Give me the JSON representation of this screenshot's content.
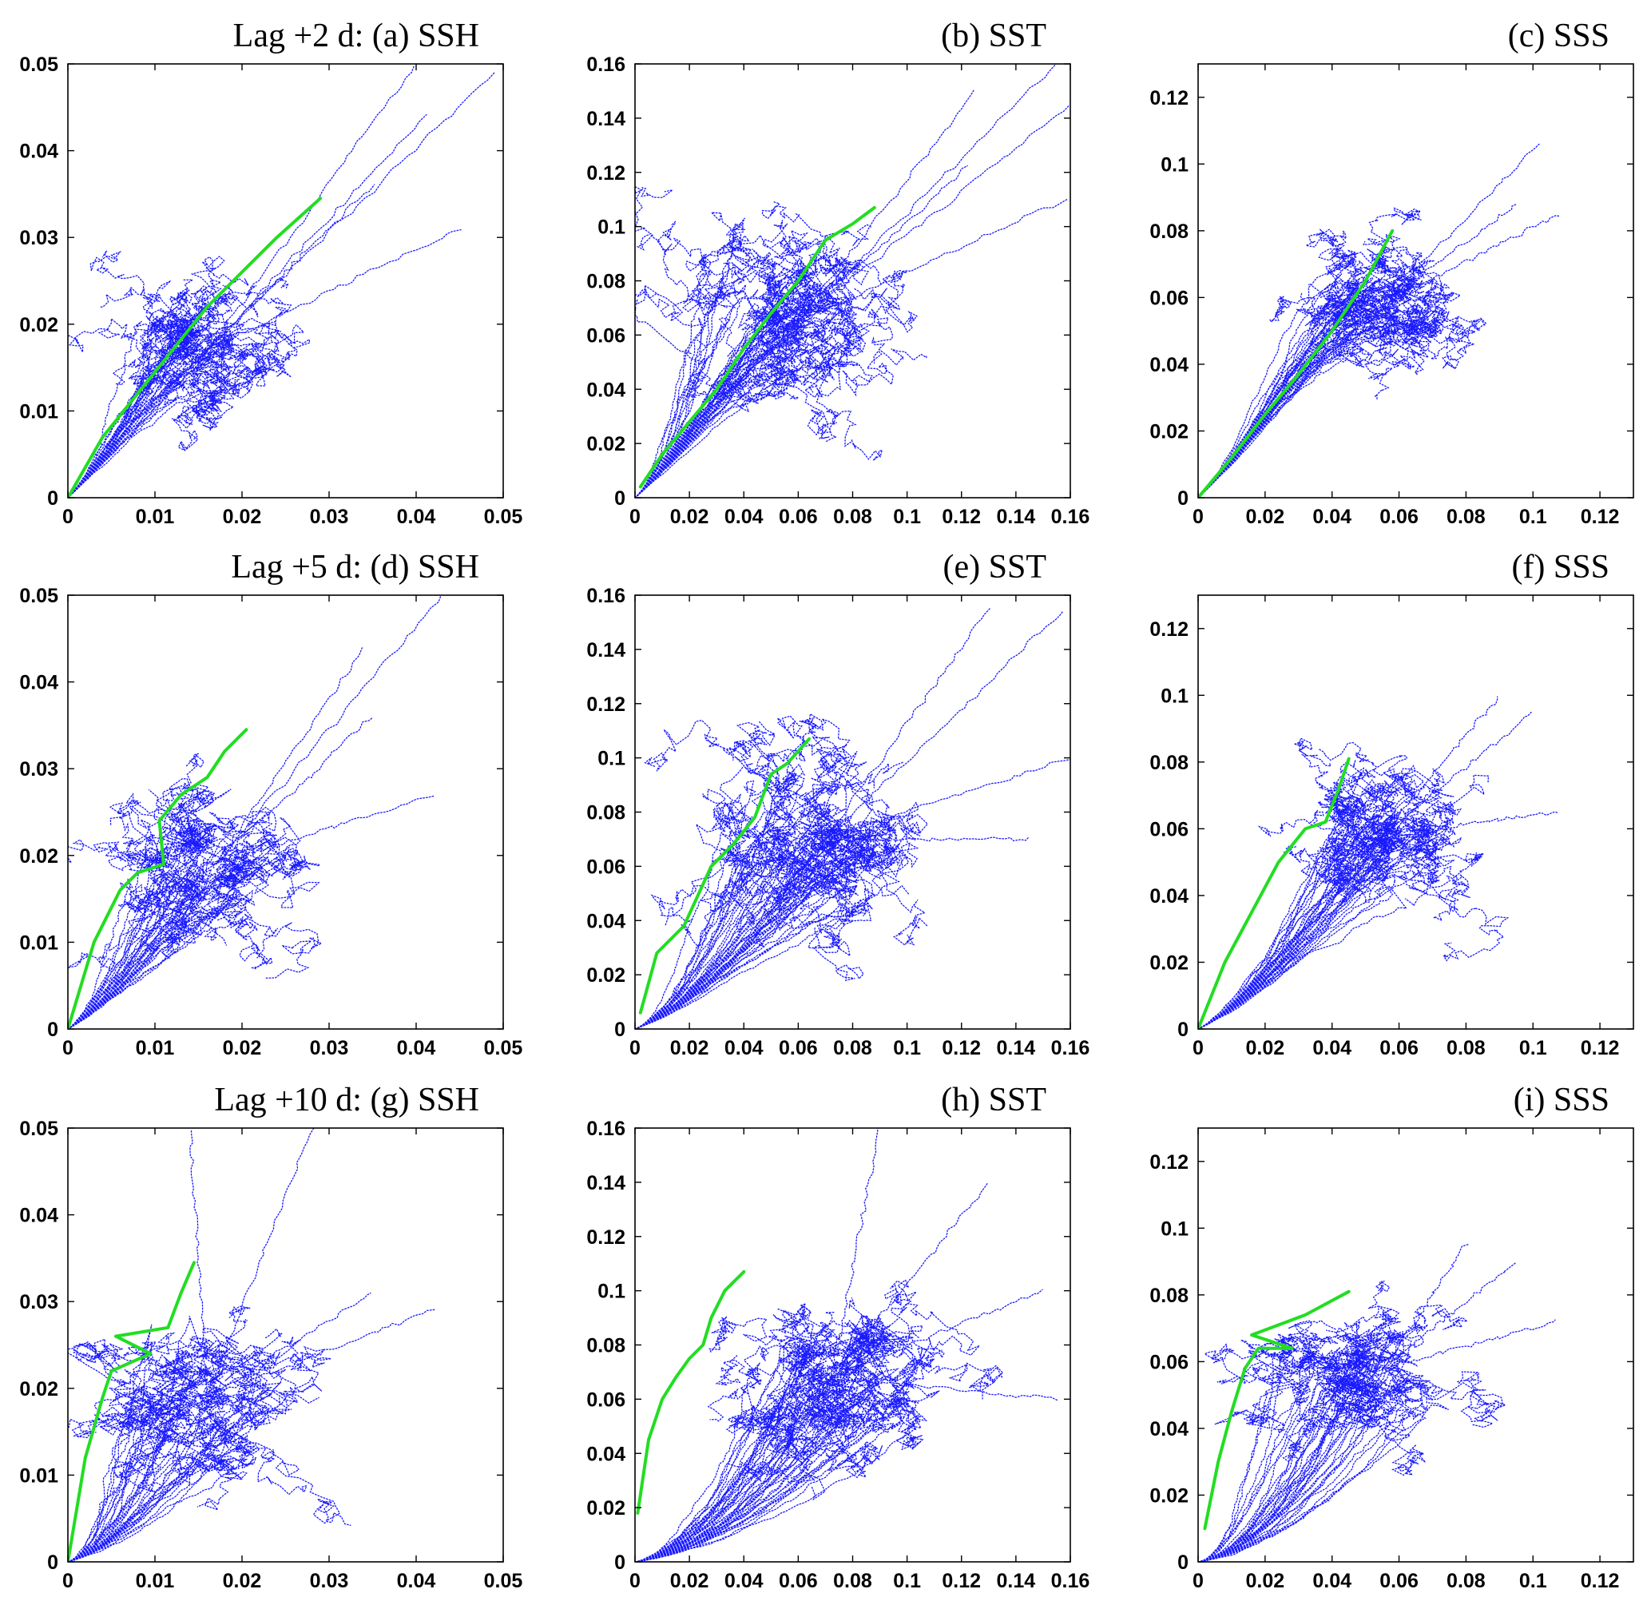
{
  "colors": {
    "trajectories": "#1a1aff",
    "mean_curve": "#22dd22",
    "axes": "#000000"
  },
  "chart_data": [
    {
      "id": "a",
      "type": "line",
      "title": "Lag +2 d: (a) SSH",
      "xlim": [
        0,
        0.05
      ],
      "ylim": [
        0,
        0.05
      ],
      "xticks": [
        "0",
        "0.01",
        "0.02",
        "0.03",
        "0.04",
        "0.05"
      ],
      "yticks": [
        "0",
        "0.01",
        "0.02",
        "0.03",
        "0.04",
        "0.05"
      ],
      "series": [
        {
          "style": "mean",
          "x": [
            0,
            0.004,
            0.008,
            0.012,
            0.016,
            0.02,
            0.024,
            0.029
          ],
          "y": [
            0,
            0.007,
            0.012,
            0.017,
            0.022,
            0.026,
            0.03,
            0.0345
          ]
        }
      ],
      "cloud": {
        "center": [
          0.016,
          0.017
        ],
        "spread": [
          0.006,
          0.005
        ],
        "n": 34,
        "slope": 0.95,
        "outliers": [
          [
            0.04,
            0.05
          ],
          [
            0.049,
            0.049
          ],
          [
            0.041,
            0.044
          ],
          [
            0.045,
            0.031
          ],
          [
            0.035,
            0.036
          ]
        ]
      }
    },
    {
      "id": "b",
      "type": "line",
      "title": "(b) SST",
      "xlim": [
        0,
        0.16
      ],
      "ylim": [
        0,
        0.16
      ],
      "xticks": [
        "0",
        "0.02",
        "0.04",
        "0.06",
        "0.08",
        "0.1",
        "0.12",
        "0.14",
        "0.16"
      ],
      "yticks": [
        "0",
        "0.02",
        "0.04",
        "0.06",
        "0.08",
        "0.1",
        "0.12",
        "0.14",
        "0.16"
      ],
      "series": [
        {
          "style": "mean",
          "x": [
            0.002,
            0.01,
            0.02,
            0.03,
            0.04,
            0.05,
            0.06,
            0.07,
            0.08,
            0.088
          ],
          "y": [
            0.004,
            0.016,
            0.028,
            0.04,
            0.055,
            0.068,
            0.08,
            0.095,
            0.101,
            0.107
          ]
        }
      ],
      "cloud": {
        "center": [
          0.06,
          0.065
        ],
        "spread": [
          0.022,
          0.02
        ],
        "n": 42,
        "slope": 0.9,
        "outliers": [
          [
            0.155,
            0.16
          ],
          [
            0.125,
            0.15
          ],
          [
            0.16,
            0.145
          ],
          [
            0.158,
            0.11
          ],
          [
            0.122,
            0.122
          ]
        ]
      }
    },
    {
      "id": "c",
      "type": "line",
      "title": "(c) SSS",
      "xlim": [
        0,
        0.13
      ],
      "ylim": [
        0,
        0.13
      ],
      "xticks": [
        "0",
        "0.02",
        "0.04",
        "0.06",
        "0.08",
        "0.1",
        "0.12"
      ],
      "yticks": [
        "0",
        "0.02",
        "0.04",
        "0.06",
        "0.08",
        "0.1",
        "0.12"
      ],
      "series": [
        {
          "style": "mean",
          "x": [
            0,
            0.01,
            0.02,
            0.03,
            0.04,
            0.05,
            0.058
          ],
          "y": [
            0,
            0.012,
            0.025,
            0.037,
            0.05,
            0.065,
            0.08
          ]
        }
      ],
      "cloud": {
        "center": [
          0.055,
          0.058
        ],
        "spread": [
          0.016,
          0.012
        ],
        "n": 38,
        "slope": 0.95,
        "outliers": [
          [
            0.102,
            0.106
          ],
          [
            0.108,
            0.085
          ],
          [
            0.095,
            0.088
          ]
        ]
      }
    },
    {
      "id": "d",
      "type": "line",
      "title": "Lag +5 d: (d) SSH",
      "xlim": [
        0,
        0.05
      ],
      "ylim": [
        0,
        0.05
      ],
      "xticks": [
        "0",
        "0.01",
        "0.02",
        "0.03",
        "0.04",
        "0.05"
      ],
      "yticks": [
        "0",
        "0.01",
        "0.02",
        "0.03",
        "0.04",
        "0.05"
      ],
      "series": [
        {
          "style": "mean",
          "x": [
            0,
            0.003,
            0.006,
            0.008,
            0.011,
            0.0105,
            0.013,
            0.016,
            0.018,
            0.0205
          ],
          "y": [
            0,
            0.01,
            0.016,
            0.018,
            0.019,
            0.024,
            0.027,
            0.029,
            0.032,
            0.0345
          ]
        }
      ],
      "cloud": {
        "center": [
          0.017,
          0.019
        ],
        "spread": [
          0.008,
          0.006
        ],
        "n": 32,
        "slope": 0.6,
        "outliers": [
          [
            0.043,
            0.05
          ],
          [
            0.034,
            0.044
          ],
          [
            0.042,
            0.027
          ],
          [
            0.035,
            0.036
          ]
        ]
      }
    },
    {
      "id": "e",
      "type": "line",
      "title": "(e) SST",
      "xlim": [
        0,
        0.16
      ],
      "ylim": [
        0,
        0.16
      ],
      "xticks": [
        "0",
        "0.02",
        "0.04",
        "0.06",
        "0.08",
        "0.1",
        "0.12",
        "0.14",
        "0.16"
      ],
      "yticks": [
        "0",
        "0.02",
        "0.04",
        "0.06",
        "0.08",
        "0.1",
        "0.12",
        "0.14",
        "0.16"
      ],
      "series": [
        {
          "style": "mean",
          "x": [
            0.002,
            0.008,
            0.018,
            0.028,
            0.036,
            0.044,
            0.05,
            0.056,
            0.064
          ],
          "y": [
            0.006,
            0.028,
            0.038,
            0.06,
            0.068,
            0.078,
            0.094,
            0.098,
            0.107
          ]
        }
      ],
      "cloud": {
        "center": [
          0.07,
          0.07
        ],
        "spread": [
          0.025,
          0.022
        ],
        "n": 42,
        "slope": 0.4,
        "outliers": [
          [
            0.158,
            0.155
          ],
          [
            0.13,
            0.155
          ],
          [
            0.16,
            0.1
          ],
          [
            0.145,
            0.07
          ]
        ]
      }
    },
    {
      "id": "f",
      "type": "line",
      "title": "(f) SSS",
      "xlim": [
        0,
        0.13
      ],
      "ylim": [
        0,
        0.13
      ],
      "xticks": [
        "0",
        "0.02",
        "0.04",
        "0.06",
        "0.08",
        "0.1",
        "0.12"
      ],
      "yticks": [
        "0",
        "0.02",
        "0.04",
        "0.06",
        "0.08",
        "0.1",
        "0.12"
      ],
      "series": [
        {
          "style": "mean",
          "x": [
            0,
            0.008,
            0.016,
            0.024,
            0.032,
            0.038,
            0.042,
            0.045
          ],
          "y": [
            0,
            0.02,
            0.035,
            0.05,
            0.06,
            0.062,
            0.072,
            0.081
          ]
        }
      ],
      "cloud": {
        "center": [
          0.055,
          0.058
        ],
        "spread": [
          0.018,
          0.013
        ],
        "n": 36,
        "slope": 0.5,
        "outliers": [
          [
            0.107,
            0.065
          ],
          [
            0.1,
            0.095
          ],
          [
            0.09,
            0.1
          ]
        ]
      }
    },
    {
      "id": "g",
      "type": "line",
      "title": "Lag +10 d: (g) SSH",
      "xlim": [
        0,
        0.05
      ],
      "ylim": [
        0,
        0.05
      ],
      "xticks": [
        "0",
        "0.01",
        "0.02",
        "0.03",
        "0.04",
        "0.05"
      ],
      "yticks": [
        "0",
        "0.01",
        "0.02",
        "0.03",
        "0.04",
        "0.05"
      ],
      "series": [
        {
          "style": "mean",
          "x": [
            0,
            0.002,
            0.004,
            0.005,
            0.0095,
            0.0055,
            0.0115,
            0.013,
            0.0145
          ],
          "y": [
            0,
            0.012,
            0.019,
            0.022,
            0.024,
            0.026,
            0.027,
            0.031,
            0.0345
          ]
        }
      ],
      "cloud": {
        "center": [
          0.016,
          0.019
        ],
        "spread": [
          0.009,
          0.006
        ],
        "n": 32,
        "slope": 0.3,
        "outliers": [
          [
            0.014,
            0.05
          ],
          [
            0.028,
            0.05
          ],
          [
            0.042,
            0.029
          ],
          [
            0.035,
            0.031
          ]
        ]
      }
    },
    {
      "id": "h",
      "type": "line",
      "title": "(h) SST",
      "xlim": [
        0,
        0.16
      ],
      "ylim": [
        0,
        0.16
      ],
      "xticks": [
        "0",
        "0.02",
        "0.04",
        "0.06",
        "0.08",
        "0.1",
        "0.12",
        "0.14",
        "0.16"
      ],
      "yticks": [
        "0",
        "0.02",
        "0.04",
        "0.06",
        "0.08",
        "0.1",
        "0.12",
        "0.14",
        "0.16"
      ],
      "series": [
        {
          "style": "mean",
          "x": [
            0.001,
            0.005,
            0.01,
            0.015,
            0.02,
            0.025,
            0.028,
            0.033,
            0.04
          ],
          "y": [
            0.018,
            0.045,
            0.06,
            0.068,
            0.075,
            0.08,
            0.09,
            0.1,
            0.107
          ]
        }
      ],
      "cloud": {
        "center": [
          0.072,
          0.068
        ],
        "spread": [
          0.025,
          0.02
        ],
        "n": 42,
        "slope": 0.15,
        "outliers": [
          [
            0.09,
            0.16
          ],
          [
            0.13,
            0.14
          ],
          [
            0.15,
            0.1
          ],
          [
            0.155,
            0.06
          ]
        ]
      }
    },
    {
      "id": "i",
      "type": "line",
      "title": "(i) SSS",
      "xlim": [
        0,
        0.13
      ],
      "ylim": [
        0,
        0.13
      ],
      "xticks": [
        "0",
        "0.02",
        "0.04",
        "0.06",
        "0.08",
        "0.1",
        "0.12"
      ],
      "yticks": [
        "0",
        "0.02",
        "0.04",
        "0.06",
        "0.08",
        "0.1",
        "0.12"
      ],
      "series": [
        {
          "style": "mean",
          "x": [
            0.002,
            0.006,
            0.01,
            0.014,
            0.018,
            0.028,
            0.016,
            0.032,
            0.045
          ],
          "y": [
            0.01,
            0.03,
            0.045,
            0.058,
            0.064,
            0.064,
            0.068,
            0.074,
            0.081
          ]
        }
      ],
      "cloud": {
        "center": [
          0.055,
          0.058
        ],
        "spread": [
          0.02,
          0.012
        ],
        "n": 36,
        "slope": 0.15,
        "outliers": [
          [
            0.107,
            0.072
          ],
          [
            0.095,
            0.09
          ],
          [
            0.08,
            0.095
          ]
        ]
      }
    }
  ]
}
